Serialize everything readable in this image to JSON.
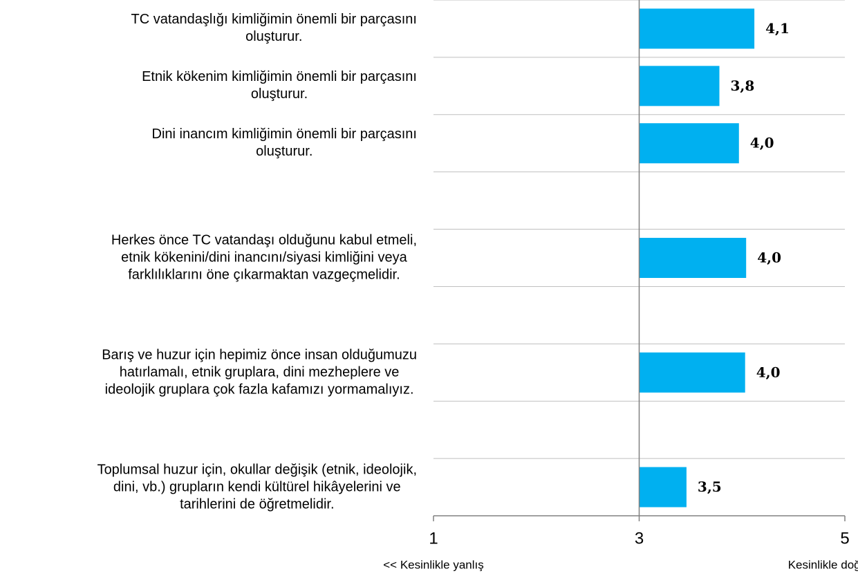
{
  "chart_data": {
    "type": "barh",
    "categories": [
      "TC vatandaşlığı kimliğimin önemli bir parçasını\noluşturur.",
      "Etnik kökenim kimliğimin önemli bir parçasını\noluşturur.",
      "Dini inancım kimliğimin önemli bir parçasını\noluşturur.",
      null,
      "Herkes önce TC vatandaşı olduğunu kabul etmeli,\netnik kökenini/dini inancını/siyasi kimliğini veya\nfarklılıklarını öne çıkarmaktan vazgeçmelidir.",
      null,
      "Barış ve huzur için hepimiz önce insan olduğumuzu\nhatırlamalı, etnik gruplara, dini mezheplere ve\nideolojik gruplara çok fazla kafamızı yormamalıyız.",
      null,
      "Toplumsal huzur için, okullar değişik (etnik, ideolojik,\ndini, vb.) grupların kendi kültürel hikâyelerini ve\ntarihlerini de öğretmelidir."
    ],
    "values": [
      4.12,
      3.78,
      3.97,
      null,
      4.04,
      null,
      4.03,
      null,
      3.46
    ],
    "value_labels": [
      "4,1",
      "3,8",
      "4,0",
      null,
      "4,0",
      null,
      "4,0",
      null,
      "3,5"
    ],
    "color": "#00b0f0",
    "bar_base": 3,
    "xlim": [
      1,
      5
    ],
    "xticks": [
      1,
      3,
      5
    ],
    "xlabel_left": "<< Kesinlikle yanlış",
    "xlabel_right": "Kesinlikle doğru >>",
    "grid": true
  }
}
